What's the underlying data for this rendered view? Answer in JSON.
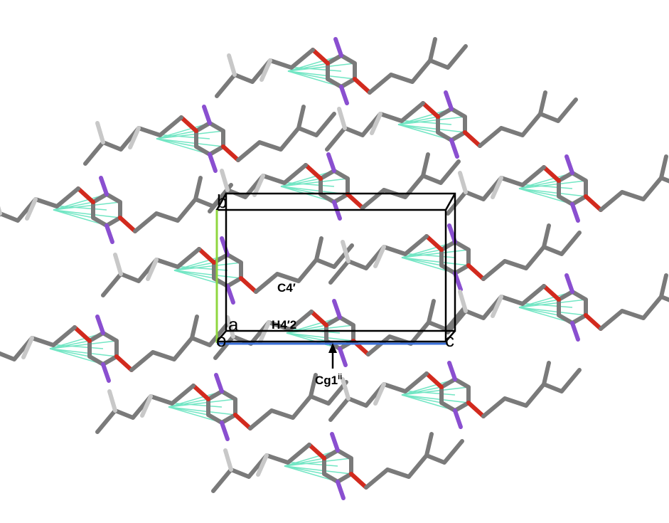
{
  "axis_labels": {
    "b": "b",
    "a": "a",
    "o": "o",
    "c": "c"
  },
  "atom_labels": {
    "c4": "C4′",
    "h4": "H4′2"
  },
  "centroid_label": {
    "text": "Cg1",
    "superscript": "ii"
  }
}
